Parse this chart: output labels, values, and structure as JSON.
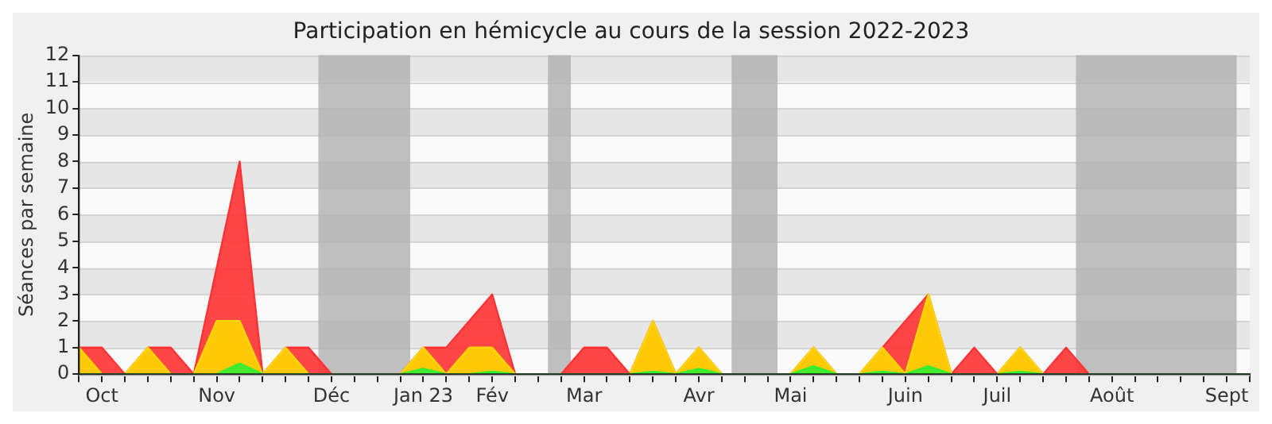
{
  "chart_data": {
    "type": "area",
    "title": "Participation en hémicycle au cours de la session 2022-2023",
    "ylabel": "Séances par semaine",
    "x": [
      "2022-10-03",
      "2022-10-10",
      "2022-10-17",
      "2022-10-24",
      "2022-10-31",
      "2022-11-07",
      "2022-11-14",
      "2022-11-21",
      "2022-11-28",
      "2022-12-05",
      "2022-12-12",
      "2022-12-19",
      "2022-12-26",
      "2023-01-02",
      "2023-01-09",
      "2023-01-16",
      "2023-01-23",
      "2023-01-30",
      "2023-02-06",
      "2023-02-13",
      "2023-02-20",
      "2023-02-27",
      "2023-03-06",
      "2023-03-13",
      "2023-03-20",
      "2023-03-27",
      "2023-04-03",
      "2023-04-10",
      "2023-04-17",
      "2023-04-24",
      "2023-05-01",
      "2023-05-08",
      "2023-05-15",
      "2023-05-22",
      "2023-05-29",
      "2023-06-05",
      "2023-06-12",
      "2023-06-19",
      "2023-06-26",
      "2023-07-03",
      "2023-07-10",
      "2023-07-17",
      "2023-07-24",
      "2023-07-31",
      "2023-08-07",
      "2023-08-14",
      "2023-08-21",
      "2023-08-28",
      "2023-09-04",
      "2023-09-11",
      "2023-09-18",
      "2023-09-25"
    ],
    "series": [
      {
        "color": "#ff3333",
        "values": [
          1,
          1,
          0,
          1,
          1,
          0,
          4,
          8,
          0,
          1,
          1,
          0,
          0,
          0,
          0,
          1,
          1,
          2,
          3,
          0,
          0,
          0,
          1,
          1,
          0,
          2,
          0,
          1,
          0,
          0,
          0,
          0,
          1,
          0,
          0,
          1,
          2,
          3,
          0,
          1,
          0,
          1,
          0,
          1,
          0,
          0,
          0,
          0,
          0,
          0,
          0,
          0
        ]
      },
      {
        "color": "#ffd700",
        "values": [
          1,
          0,
          0,
          1,
          0,
          0,
          2,
          2,
          0,
          1,
          0,
          0,
          0,
          0,
          0,
          1,
          0,
          1,
          1,
          0,
          0,
          0,
          0,
          0,
          0,
          2,
          0,
          1,
          0,
          0,
          0,
          0,
          1,
          0,
          0,
          1,
          0,
          3,
          0,
          0,
          0,
          1,
          0,
          0,
          0,
          0,
          0,
          0,
          0,
          0,
          0,
          0
        ]
      },
      {
        "color": "#33ee33",
        "values": [
          0,
          0,
          0,
          0,
          0,
          0,
          0,
          0.4,
          0,
          0,
          0,
          0,
          0,
          0,
          0,
          0.2,
          0,
          0,
          0.1,
          0,
          0,
          0,
          0,
          0,
          0,
          0.1,
          0,
          0.2,
          0,
          0,
          0,
          0,
          0.3,
          0,
          0,
          0.1,
          0,
          0.3,
          0,
          0,
          0,
          0.1,
          0,
          0,
          0,
          0,
          0,
          0,
          0,
          0,
          0,
          0
        ]
      }
    ],
    "xlim": [
      "2022-10-03",
      "2023-09-25"
    ],
    "xticks": [
      {
        "value": "2022-10-03",
        "label": null
      },
      {
        "value": "2022-10-10",
        "label": "Oct"
      },
      {
        "value": "2022-10-17",
        "label": null
      },
      {
        "value": "2022-10-24",
        "label": null
      },
      {
        "value": "2022-10-31",
        "label": null
      },
      {
        "value": "2022-11-07",
        "label": null
      },
      {
        "value": "2022-11-14",
        "label": "Nov"
      },
      {
        "value": "2022-11-21",
        "label": null
      },
      {
        "value": "2022-11-28",
        "label": null
      },
      {
        "value": "2022-12-05",
        "label": null
      },
      {
        "value": "2022-12-12",
        "label": null
      },
      {
        "value": "2022-12-19",
        "label": "Déc"
      },
      {
        "value": "2022-12-26",
        "label": null
      },
      {
        "value": "2023-01-02",
        "label": null
      },
      {
        "value": "2023-01-09",
        "label": null
      },
      {
        "value": "2023-01-16",
        "label": "Jan 23"
      },
      {
        "value": "2023-01-23",
        "label": null
      },
      {
        "value": "2023-01-30",
        "label": null
      },
      {
        "value": "2023-02-06",
        "label": "Fév"
      },
      {
        "value": "2023-02-13",
        "label": null
      },
      {
        "value": "2023-02-20",
        "label": null
      },
      {
        "value": "2023-02-27",
        "label": null
      },
      {
        "value": "2023-03-06",
        "label": "Mar"
      },
      {
        "value": "2023-03-13",
        "label": null
      },
      {
        "value": "2023-03-20",
        "label": null
      },
      {
        "value": "2023-03-27",
        "label": null
      },
      {
        "value": "2023-04-03",
        "label": null
      },
      {
        "value": "2023-04-10",
        "label": "Avr"
      },
      {
        "value": "2023-04-17",
        "label": null
      },
      {
        "value": "2023-04-24",
        "label": null
      },
      {
        "value": "2023-05-01",
        "label": null
      },
      {
        "value": "2023-05-08",
        "label": "Mai"
      },
      {
        "value": "2023-05-15",
        "label": null
      },
      {
        "value": "2023-05-22",
        "label": null
      },
      {
        "value": "2023-05-29",
        "label": null
      },
      {
        "value": "2023-06-05",
        "label": null
      },
      {
        "value": "2023-06-12",
        "label": "Juin"
      },
      {
        "value": "2023-06-19",
        "label": null
      },
      {
        "value": "2023-06-26",
        "label": null
      },
      {
        "value": "2023-07-03",
        "label": null
      },
      {
        "value": "2023-07-10",
        "label": "Juil"
      },
      {
        "value": "2023-07-17",
        "label": null
      },
      {
        "value": "2023-07-24",
        "label": null
      },
      {
        "value": "2023-07-31",
        "label": null
      },
      {
        "value": "2023-08-07",
        "label": null
      },
      {
        "value": "2023-08-14",
        "label": "Août"
      },
      {
        "value": "2023-08-21",
        "label": null
      },
      {
        "value": "2023-08-28",
        "label": null
      },
      {
        "value": "2023-09-04",
        "label": null
      },
      {
        "value": "2023-09-11",
        "label": null
      },
      {
        "value": "2023-09-18",
        "label": "Sept"
      },
      {
        "value": "2023-09-25",
        "label": null
      }
    ],
    "ylim": [
      0,
      12
    ],
    "yticks": [
      0,
      1,
      2,
      3,
      4,
      5,
      6,
      7,
      8,
      9,
      10,
      11,
      12
    ],
    "grid": "y",
    "bands": [
      {
        "axis": "x",
        "from": "2022-12-15",
        "to": "2023-01-12",
        "color": "#b0b0b0"
      },
      {
        "axis": "x",
        "from": "2023-02-23",
        "to": "2023-03-02",
        "color": "#b0b0b0"
      },
      {
        "axis": "x",
        "from": "2023-04-20",
        "to": "2023-05-04",
        "color": "#b0b0b0"
      },
      {
        "axis": "x",
        "from": "2023-08-03",
        "to": "2023-09-21",
        "color": "#b0b0b0"
      }
    ]
  }
}
